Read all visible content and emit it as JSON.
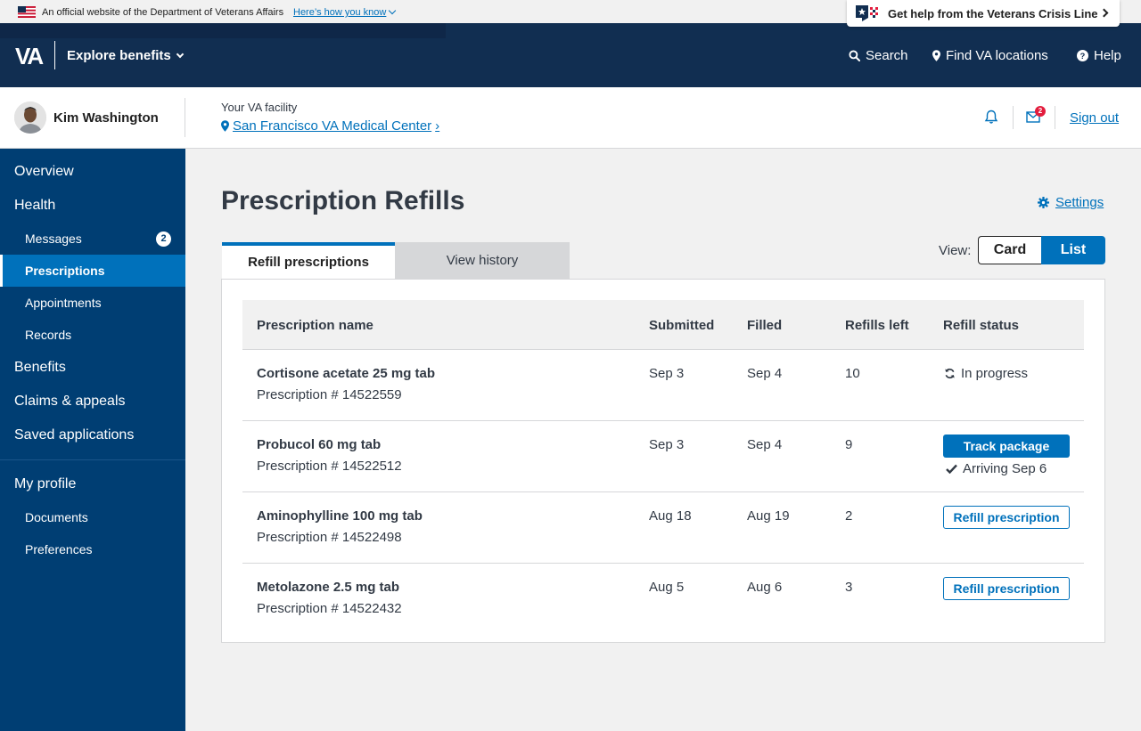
{
  "banner": {
    "official_text": "An official website of the Department of Veterans Affairs",
    "how_link": "Here’s how you know",
    "crisis_line": "Get help from the Veterans Crisis Line"
  },
  "header": {
    "logo": "VA",
    "explore": "Explore benefits",
    "nav": {
      "search": "Search",
      "locations": "Find VA locations",
      "help": "Help"
    }
  },
  "user": {
    "name": "Kim Washington",
    "facility_label": "Your VA facility",
    "facility_name": "San Francisco VA Medical Center",
    "facility_chevron": "›",
    "mail_count": "2",
    "sign_out": "Sign out"
  },
  "sidebar": {
    "overview": "Overview",
    "health": "Health",
    "messages": "Messages",
    "messages_count": "2",
    "prescriptions": "Prescriptions",
    "appointments": "Appointments",
    "records": "Records",
    "benefits": "Benefits",
    "claims": "Claims & appeals",
    "saved": "Saved applications",
    "profile": "My profile",
    "documents": "Documents",
    "preferences": "Preferences"
  },
  "main": {
    "title": "Prescription Refills",
    "settings": "Settings",
    "tabs": [
      "Refill prescriptions",
      "View history"
    ],
    "view_label": "View:",
    "view_card": "Card",
    "view_list": "List"
  },
  "table": {
    "headers": [
      "Prescription name",
      "Submitted",
      "Filled",
      "Refills left",
      "Refill status"
    ],
    "rows": [
      {
        "name": "Cortisone acetate 25 mg tab",
        "number": "Prescription # 14522559",
        "submitted": "Sep 3",
        "filled": "Sep 4",
        "refills": "10",
        "status": "In progress"
      },
      {
        "name": "Probucol 60 mg tab",
        "number": "Prescription # 14522512",
        "submitted": "Sep 3",
        "filled": "Sep 4",
        "refills": "9",
        "action": "Track package",
        "arriving": "Arriving Sep 6"
      },
      {
        "name": "Aminophylline 100 mg tab",
        "number": "Prescription # 14522498",
        "submitted": "Aug 18",
        "filled": "Aug 19",
        "refills": "2",
        "action": "Refill prescription"
      },
      {
        "name": "Metolazone 2.5 mg tab",
        "number": "Prescription # 14522432",
        "submitted": "Aug 5",
        "filled": "Aug 6",
        "refills": "3",
        "action": "Refill prescription"
      }
    ]
  }
}
